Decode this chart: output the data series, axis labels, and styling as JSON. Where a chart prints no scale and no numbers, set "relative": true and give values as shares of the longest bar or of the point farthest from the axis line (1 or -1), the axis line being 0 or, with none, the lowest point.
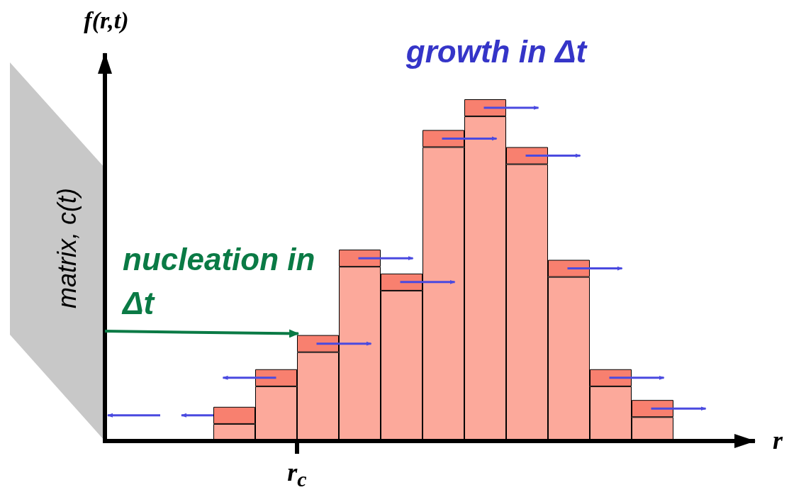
{
  "chart_data": {
    "type": "bar",
    "relative": true,
    "stacked": true,
    "xlabel": "r",
    "ylabel": "f(r,t)",
    "categories": [
      null,
      null,
      null,
      null,
      null,
      null,
      null,
      null,
      null,
      null,
      null
    ],
    "series": [
      {
        "color": "#fca99b",
        "values": [
          0.05,
          0.16,
          0.26,
          0.51,
          0.44,
          0.86,
          0.95,
          0.81,
          0.48,
          0.16,
          0.07
        ]
      },
      {
        "color": "#f8806f",
        "values": [
          0.05,
          0.05,
          0.05,
          0.05,
          0.05,
          0.05,
          0.05,
          0.05,
          0.05,
          0.05,
          0.05
        ]
      }
    ],
    "annotations": [
      "growth in Δt",
      "nucleation in Δt",
      "matrix, c(t)",
      "r$_{c}$"
    ]
  }
}
